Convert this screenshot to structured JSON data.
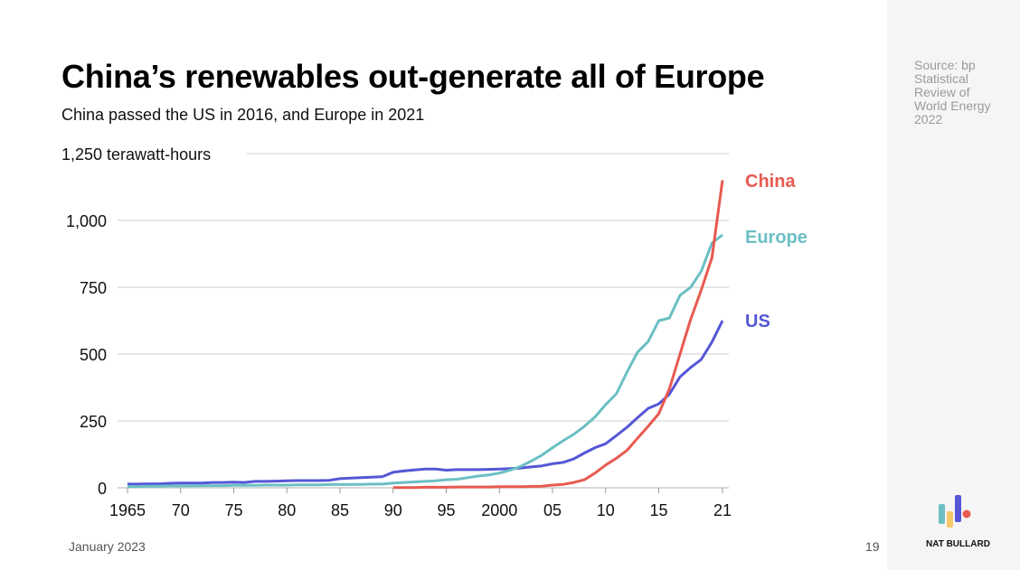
{
  "title": "China’s renewables out-generate all of Europe",
  "subtitle": "China passed the US in 2016, and Europe in 2021",
  "source": "Source: bp Statistical Review of World Energy 2022",
  "footer": {
    "date": "January 2023",
    "page": "19",
    "brand": "NAT BULLARD"
  },
  "colors": {
    "China": "#e85a50",
    "Europe": "#6bbfc3",
    "US": "#5557d6",
    "grid": "#dddddd"
  },
  "chart_data": {
    "type": "line",
    "title": "China’s renewables out-generate all of Europe",
    "subtitle": "China passed the US in 2016, and Europe in 2021",
    "ylabel": "terawatt-hours",
    "ylim": [
      0,
      1250
    ],
    "xlim": [
      1965,
      2021
    ],
    "grid": true,
    "legend": "right, inline labels at line ends",
    "y_ticks": [
      {
        "value": 0,
        "label": "0"
      },
      {
        "value": 250,
        "label": "250"
      },
      {
        "value": 500,
        "label": "500"
      },
      {
        "value": 750,
        "label": "750"
      },
      {
        "value": 1000,
        "label": "1,000"
      },
      {
        "value": 1250,
        "label": "1,250 terawatt-hours"
      }
    ],
    "x_ticks": [
      {
        "value": 1965,
        "label": "1965"
      },
      {
        "value": 1970,
        "label": "70"
      },
      {
        "value": 1975,
        "label": "75"
      },
      {
        "value": 1980,
        "label": "80"
      },
      {
        "value": 1985,
        "label": "85"
      },
      {
        "value": 1990,
        "label": "90"
      },
      {
        "value": 1995,
        "label": "95"
      },
      {
        "value": 2000,
        "label": "2000"
      },
      {
        "value": 2005,
        "label": "05"
      },
      {
        "value": 2010,
        "label": "10"
      },
      {
        "value": 2015,
        "label": "15"
      },
      {
        "value": 2021,
        "label": "21"
      }
    ],
    "series": [
      {
        "name": "US",
        "start_year": 1965,
        "values": [
          14,
          14,
          15,
          15,
          17,
          18,
          18,
          18,
          20,
          20,
          21,
          20,
          24,
          24,
          25,
          26,
          27,
          27,
          27,
          28,
          34,
          36,
          38,
          40,
          42,
          58,
          63,
          67,
          70,
          70,
          66,
          68,
          68,
          68,
          69,
          70,
          72,
          74,
          78,
          82,
          90,
          95,
          108,
          130,
          150,
          165,
          195,
          226,
          262,
          297,
          314,
          350,
          415,
          450,
          480,
          545,
          625
        ]
      },
      {
        "name": "Europe",
        "start_year": 1965,
        "values": [
          5,
          5,
          6,
          6,
          7,
          7,
          7,
          8,
          8,
          8,
          9,
          9,
          9,
          10,
          10,
          10,
          11,
          11,
          11,
          12,
          12,
          13,
          13,
          14,
          14,
          18,
          20,
          22,
          24,
          26,
          30,
          32,
          38,
          44,
          48,
          55,
          66,
          80,
          100,
          122,
          150,
          176,
          200,
          230,
          265,
          311,
          351,
          432,
          507,
          547,
          625,
          635,
          720,
          750,
          810,
          915,
          946
        ]
      },
      {
        "name": "China",
        "start_year": 1990,
        "values": [
          1,
          1,
          1,
          2,
          2,
          2,
          3,
          3,
          3,
          3,
          4,
          4,
          4,
          5,
          6,
          10,
          13,
          20,
          30,
          55,
          85,
          110,
          140,
          185,
          230,
          277,
          370,
          500,
          630,
          740,
          860,
          1150
        ]
      }
    ]
  }
}
